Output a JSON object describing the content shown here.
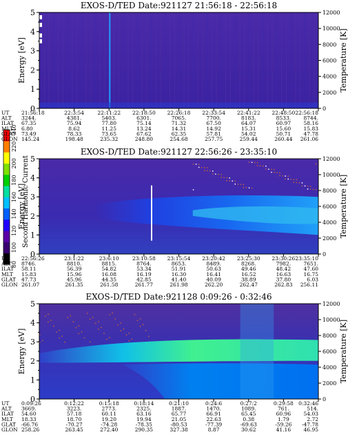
{
  "colorbar": {
    "label": "Second Harmonic Current",
    "ticks": [
      "80",
      "100",
      "120",
      "140",
      "160",
      "180",
      "200",
      "220",
      "240"
    ],
    "colors": [
      "#000000",
      "#3a0070",
      "#5a00a8",
      "#2000ff",
      "#0060ff",
      "#00c0ff",
      "#00e0a0",
      "#00d000",
      "#80e000",
      "#ffff00",
      "#ff8000",
      "#ff0000"
    ]
  },
  "chart_data": [
    {
      "type": "heatmap",
      "title": "EXOS-D/TED   Date:921127  21:56:18 - 22:56:18",
      "ylabel": "Energy [eV]",
      "y2label": "Temperature [K]",
      "ylim": [
        0,
        5
      ],
      "y2lim": [
        0,
        12000
      ],
      "yticks": [
        "0",
        "1",
        "2",
        "3",
        "4",
        "5"
      ],
      "y2ticks": [
        "0",
        "2000",
        "4000",
        "6000",
        "8000",
        "10000",
        "12000"
      ],
      "rows": [
        {
          "name": "UT",
          "values": [
            "21:56:18",
            "22:3:54",
            "22:11:22",
            "22:18:50",
            "22:26:18",
            "22:33:54",
            "22:41:22",
            "22:48:50",
            "22:56:18"
          ]
        },
        {
          "name": "ALT",
          "values": [
            "3244.",
            "4381.",
            "5403.",
            "6301.",
            "7065.",
            "7700.",
            "8183.",
            "8533.",
            "8744."
          ]
        },
        {
          "name": "ILAT",
          "values": [
            "67.35",
            "75.94",
            "77.80",
            "75.14",
            "71.32",
            "67.50",
            "64.07",
            "60.97",
            "58.16"
          ]
        },
        {
          "name": "MLT",
          "values": [
            "6.80",
            "8.62",
            "11.25",
            "13.24",
            "14.31",
            "14.92",
            "15.31",
            "15.60",
            "15.83"
          ]
        },
        {
          "name": "GLAT",
          "values": [
            "73.49",
            "78.33",
            "73.65",
            "67.62",
            "62.35",
            "57.81",
            "54.02",
            "50.71",
            "47.78"
          ]
        },
        {
          "name": "GLON",
          "values": [
            "145.24",
            "198.48",
            "235.32",
            "248.80",
            "254.68",
            "257.75",
            "259.44",
            "260.44",
            "261.06"
          ]
        }
      ]
    },
    {
      "type": "heatmap",
      "title": "EXOS-D/TED   Date:921127  22:56:26 - 23:35:10",
      "ylabel": "Energy [eV]",
      "y2label": "Temperature [K]",
      "ylim": [
        0,
        5
      ],
      "y2lim": [
        0,
        12000
      ],
      "yticks": [
        "0",
        "1",
        "2",
        "3",
        "4",
        "5"
      ],
      "y2ticks": [
        "0",
        "2000",
        "4000",
        "6000",
        "8000",
        "10000",
        "12000"
      ],
      "rows": [
        {
          "name": "UT",
          "values": [
            "22:56:26",
            "23:1:22",
            "23:6:10",
            "23:10:58",
            "23:15:54",
            "23:20:42",
            "23:25:30",
            "23:30:26",
            "23:35:10"
          ]
        },
        {
          "name": "ALT",
          "values": [
            "8746.",
            "8810.",
            "8815.",
            "8764.",
            "8653.",
            "8489.",
            "8268.",
            "7982.",
            "7651."
          ]
        },
        {
          "name": "ILAT",
          "values": [
            "58.11",
            "56.39",
            "54.82",
            "53.34",
            "51.91",
            "50.63",
            "49.46",
            "48.42",
            "47.60"
          ]
        },
        {
          "name": "MLT",
          "values": [
            "15.83",
            "15.96",
            "16.08",
            "16.19",
            "16.30",
            "16.41",
            "16.52",
            "16.63",
            "16.75"
          ]
        },
        {
          "name": "GLAT",
          "values": [
            "47.73",
            "45.96",
            "44.35",
            "42.85",
            "41.40",
            "40.09",
            "38.89",
            "37.80",
            "6.03"
          ]
        },
        {
          "name": "GLON",
          "values": [
            "261.07",
            "261.35",
            "261.58",
            "261.77",
            "261.98",
            "262.20",
            "262.47",
            "262.83",
            "256.11"
          ]
        }
      ]
    },
    {
      "type": "heatmap",
      "title": "EXOS-D/TED   Date:921128   0:09:26 - 0:32:46",
      "ylabel": "Energy [eV]",
      "y2label": "Temperature [K]",
      "ylim": [
        0,
        5
      ],
      "y2lim": [
        0,
        12000
      ],
      "yticks": [
        "0",
        "1",
        "2",
        "3",
        "4",
        "5"
      ],
      "y2ticks": [
        "0",
        "2000",
        "4000",
        "6000",
        "8000",
        "10000",
        "12000"
      ],
      "rows": [
        {
          "name": "UT",
          "values": [
            "0:09:26",
            "0:12:22",
            "0:15:18",
            "0:18:14",
            "0:21:10",
            "0:24:6",
            "0:27:2",
            "0:29:58",
            "0:32:46"
          ]
        },
        {
          "name": "ALT",
          "values": [
            "3669.",
            "3223.",
            "2773.",
            "2325.",
            "1887.",
            "1470.",
            "1089.",
            "761.",
            "514."
          ]
        },
        {
          "name": "ILAT",
          "values": [
            "54.60",
            "57.18",
            "60.11",
            "63.16",
            "65.77",
            "66.91",
            "65.45",
            "60.96",
            "54.03"
          ]
        },
        {
          "name": "MLT",
          "values": [
            "18.33",
            "18.70",
            "19.20",
            "19.94",
            "21.05",
            "22.63",
            "0.38",
            "1.79",
            "2.72"
          ]
        },
        {
          "name": "GLAT",
          "values": [
            "-66.76",
            "-70.27",
            "-74.28",
            "-78.35",
            "-80.53",
            "-77.39",
            "-69.63",
            "-59.26",
            "-47.78"
          ]
        },
        {
          "name": "GLON",
          "values": [
            "258.26",
            "263.45",
            "272.40",
            "290.35",
            "327.38",
            "8.87",
            "30.62",
            "41.16",
            "46.95"
          ]
        }
      ]
    }
  ]
}
